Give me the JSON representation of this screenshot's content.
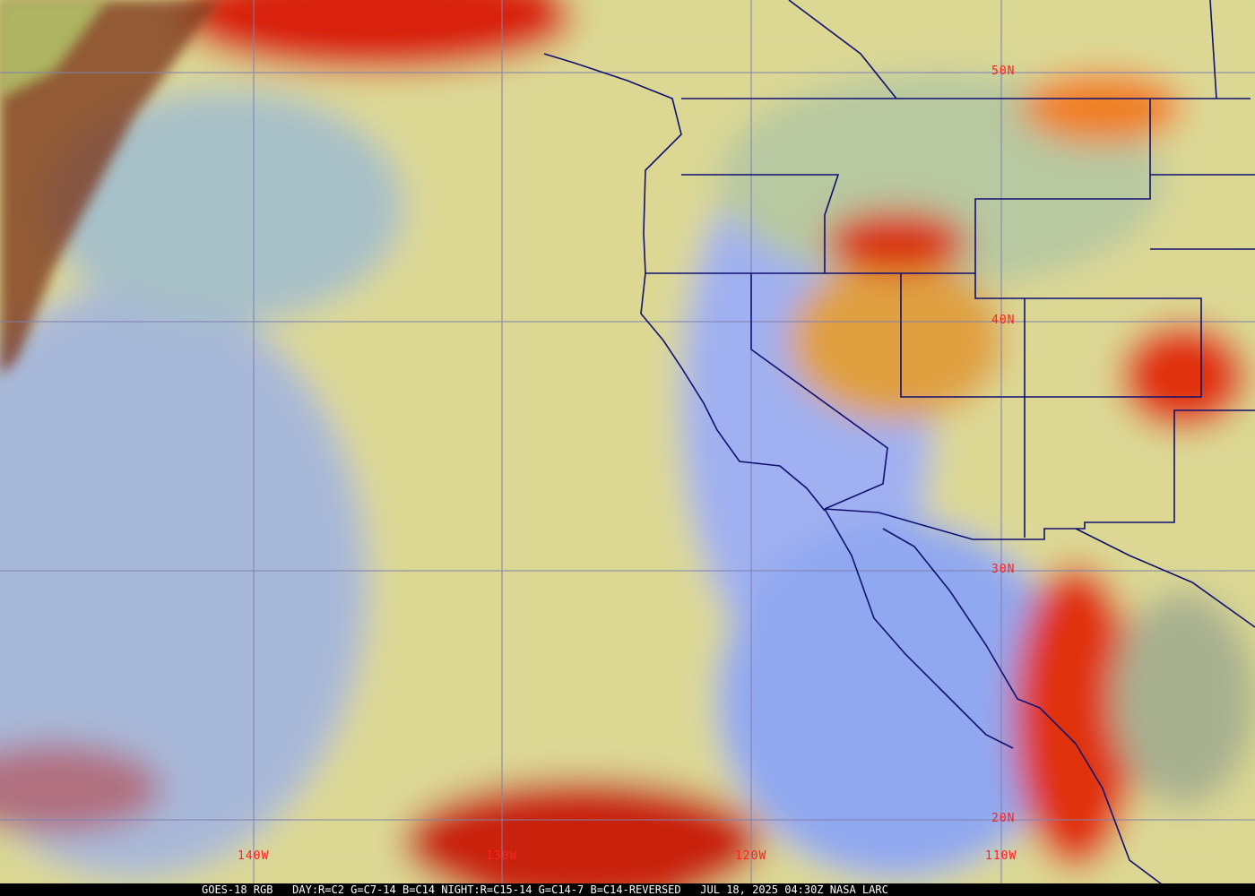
{
  "satellite_image": {
    "caption": "GOES-18 RGB   DAY:R=C2 G=C7-14 B=C14 NIGHT:R=C15-14 G=C14-7 B=C14-REVERSED   JUL 18, 2025 04:30Z NASA LARC",
    "longitude_labels": [
      "140W",
      "130W",
      "120W",
      "110W"
    ],
    "latitude_labels": [
      "50N",
      "40N",
      "30N",
      "20N"
    ],
    "colors": {
      "label": "#ff2020",
      "gridline": "#8080b0",
      "boundaries": "#101070",
      "ocean_low_cloud": "#e0dc90",
      "clear": "#90a8f0",
      "high_cloud": "#e02010"
    }
  }
}
